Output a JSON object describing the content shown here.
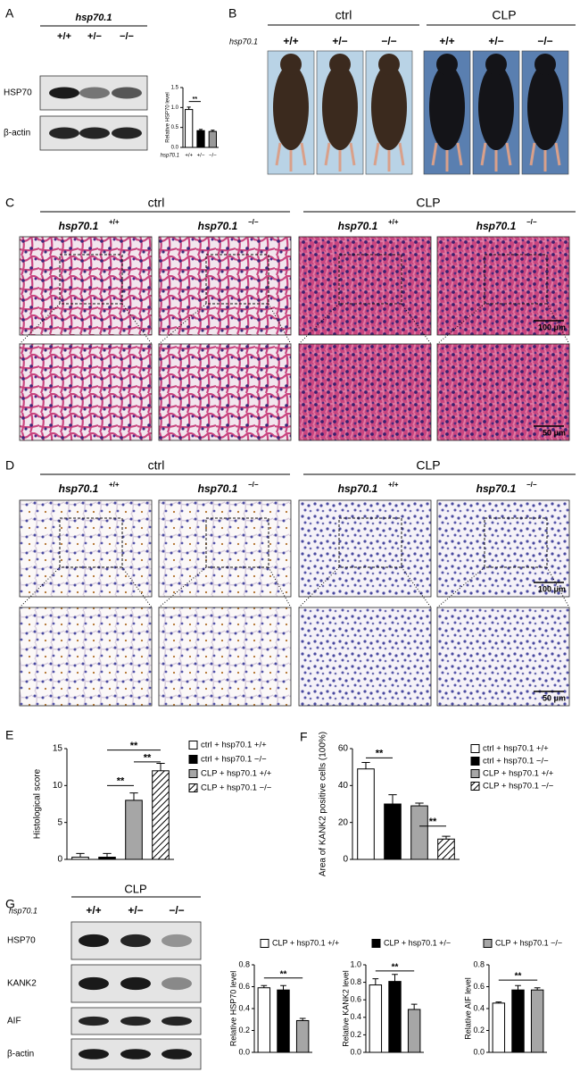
{
  "panels": {
    "A": {
      "label": "A",
      "gene": "hsp70.1",
      "genotypes": [
        "+/+",
        "+/−",
        "−/−"
      ],
      "blots": [
        "HSP70",
        "β-actin"
      ]
    },
    "B": {
      "label": "B",
      "groups": [
        "ctrl",
        "CLP"
      ],
      "gene": "hsp70.1",
      "genotypes": [
        "+/+",
        "+/−",
        "−/−",
        "+/+",
        "+/−",
        "−/−"
      ]
    },
    "C": {
      "label": "C",
      "groups": [
        "ctrl",
        "CLP"
      ],
      "headings": [
        {
          "gene": "hsp70.1",
          "genotype": "+/+"
        },
        {
          "gene": "hsp70.1",
          "genotype": "−/−"
        },
        {
          "gene": "hsp70.1",
          "genotype": "+/+"
        },
        {
          "gene": "hsp70.1",
          "genotype": "−/−"
        }
      ],
      "scale_bars": [
        "100 μm",
        "50 μm"
      ]
    },
    "D": {
      "label": "D",
      "groups": [
        "ctrl",
        "CLP"
      ],
      "headings": [
        {
          "gene": "hsp70.1",
          "genotype": "+/+"
        },
        {
          "gene": "hsp70.1",
          "genotype": "−/−"
        },
        {
          "gene": "hsp70.1",
          "genotype": "+/+"
        },
        {
          "gene": "hsp70.1",
          "genotype": "−/−"
        }
      ],
      "scale_bars": [
        "100 μm",
        "50 μm"
      ]
    },
    "E": {
      "label": "E"
    },
    "F": {
      "label": "F"
    },
    "G": {
      "label": "G",
      "group": "CLP",
      "gene": "hsp70.1",
      "genotypes": [
        "+/+",
        "+/−",
        "−/−"
      ],
      "blots": [
        "HSP70",
        "KANK2",
        "AIF",
        "β-actin"
      ]
    }
  },
  "chart_data": [
    {
      "type": "bar",
      "ylabel": "Relative HSP70 level",
      "xlabel": "hsp70.1",
      "categories": [
        "+/+",
        "+/−",
        "−/−"
      ],
      "values": [
        0.95,
        0.42,
        0.4
      ],
      "errors": [
        0.06,
        0.03,
        0.03
      ],
      "colors": [
        "#ffffff",
        "#000000",
        "#999999"
      ],
      "ylim": [
        0,
        1.5
      ],
      "yticks": [
        {
          "value": 0,
          "label": "0.0"
        },
        {
          "value": 0.5,
          "label": "0.5"
        },
        {
          "value": 1,
          "label": "1.0"
        },
        {
          "value": 1.5,
          "label": "1.5"
        }
      ],
      "annotations": [
        "**"
      ]
    },
    {
      "type": "bar",
      "ylabel": "Histological score",
      "legend": [
        "ctrl + hsp70.1 +/+",
        "ctrl + hsp70.1 −/−",
        "CLP + hsp70.1 +/+",
        "CLP + hsp70.1 −/−"
      ],
      "values": [
        0.3,
        0.3,
        8,
        12
      ],
      "errors": [
        0.5,
        0.5,
        1,
        1
      ],
      "colors": [
        "#ffffff",
        "#000000",
        "#a6a6a6",
        "#ffffff"
      ],
      "hatched": [
        false,
        false,
        false,
        true
      ],
      "ylim": [
        0,
        15
      ],
      "yticks": [
        0,
        5,
        10,
        15
      ],
      "annotations": [
        "**",
        "**",
        "**"
      ]
    },
    {
      "type": "bar",
      "ylabel": "Area of KANK2 positive cells (100%)",
      "legend": [
        "ctrl + hsp70.1 +/+",
        "ctrl + hsp70.1 −/−",
        "CLP + hsp70.1 +/+",
        "CLP + hsp70.1 −/−"
      ],
      "values": [
        49,
        30,
        29,
        11
      ],
      "errors": [
        3.5,
        5,
        1.5,
        1.5
      ],
      "colors": [
        "#ffffff",
        "#000000",
        "#a6a6a6",
        "#ffffff"
      ],
      "hatched": [
        false,
        false,
        false,
        true
      ],
      "ylim": [
        0,
        60
      ],
      "yticks": [
        0,
        20,
        40,
        60
      ],
      "annotations": [
        "**",
        "**"
      ]
    },
    {
      "type": "bar",
      "ylabel": "Relative HSP70 level",
      "legend": [
        "CLP + hsp70.1 +/+",
        "CLP + hsp70.1 +/−",
        "CLP + hsp70.1 −/−"
      ],
      "values": [
        0.59,
        0.57,
        0.29
      ],
      "errors": [
        0.02,
        0.04,
        0.02
      ],
      "colors": [
        "#ffffff",
        "#000000",
        "#a6a6a6"
      ],
      "ylim": [
        0,
        0.8
      ],
      "yticks": [
        {
          "value": 0,
          "label": "0.0"
        },
        {
          "value": 0.2,
          "label": "0.2"
        },
        {
          "value": 0.4,
          "label": "0.4"
        },
        {
          "value": 0.6,
          "label": "0.6"
        },
        {
          "value": 0.8,
          "label": "0.8"
        }
      ],
      "annotations": [
        "**"
      ]
    },
    {
      "type": "bar",
      "ylabel": "Relative KANK2 level",
      "values": [
        0.77,
        0.81,
        0.49
      ],
      "errors": [
        0.07,
        0.08,
        0.06
      ],
      "colors": [
        "#ffffff",
        "#000000",
        "#a6a6a6"
      ],
      "ylim": [
        0,
        1
      ],
      "yticks": [
        {
          "value": 0,
          "label": "0.0"
        },
        {
          "value": 0.2,
          "label": "0.2"
        },
        {
          "value": 0.4,
          "label": "0.4"
        },
        {
          "value": 0.6,
          "label": "0.6"
        },
        {
          "value": 0.8,
          "label": "0.8"
        },
        {
          "value": 1,
          "label": "1.0"
        }
      ],
      "annotations": [
        "**"
      ]
    },
    {
      "type": "bar",
      "ylabel": "Relative AIF level",
      "values": [
        0.45,
        0.57,
        0.57
      ],
      "errors": [
        0.01,
        0.04,
        0.02
      ],
      "colors": [
        "#ffffff",
        "#000000",
        "#a6a6a6"
      ],
      "ylim": [
        0,
        0.8
      ],
      "yticks": [
        {
          "value": 0,
          "label": "0.0"
        },
        {
          "value": 0.2,
          "label": "0.2"
        },
        {
          "value": 0.4,
          "label": "0.4"
        },
        {
          "value": 0.6,
          "label": "0.6"
        },
        {
          "value": 0.8,
          "label": "0.8"
        }
      ],
      "annotations": [
        "**"
      ]
    }
  ]
}
